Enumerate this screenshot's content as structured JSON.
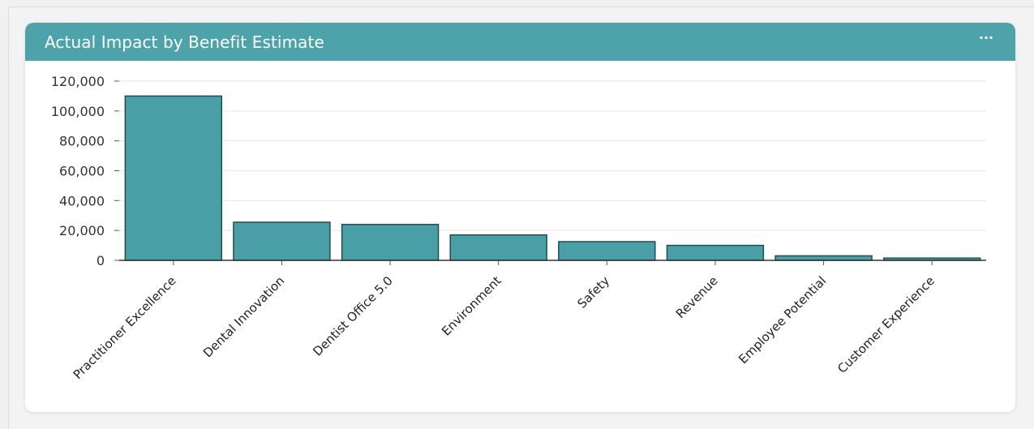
{
  "widget": {
    "title": "Actual Impact by Benefit Estimate",
    "menu_label": "···",
    "header_color": "#4ea3ab"
  },
  "chart_data": {
    "type": "bar",
    "categories": [
      "Practitioner Excellence",
      "Dental Innovation",
      "Dentist Office 5.0",
      "Environment",
      "Safety",
      "Revenue",
      "Employee Potential",
      "Customer Experience"
    ],
    "values": [
      110000,
      25500,
      24000,
      17000,
      12500,
      10000,
      3000,
      1500
    ],
    "ylim": [
      0,
      120000
    ],
    "yticks": [
      0,
      20000,
      40000,
      60000,
      80000,
      100000,
      120000
    ],
    "ytick_labels": [
      "0",
      "20,000",
      "40,000",
      "60,000",
      "80,000",
      "100,000",
      "120,000"
    ],
    "bar_color": "#4a9ea6",
    "bar_edge_color": "#1f4d52",
    "grid": true,
    "legend": "none"
  }
}
